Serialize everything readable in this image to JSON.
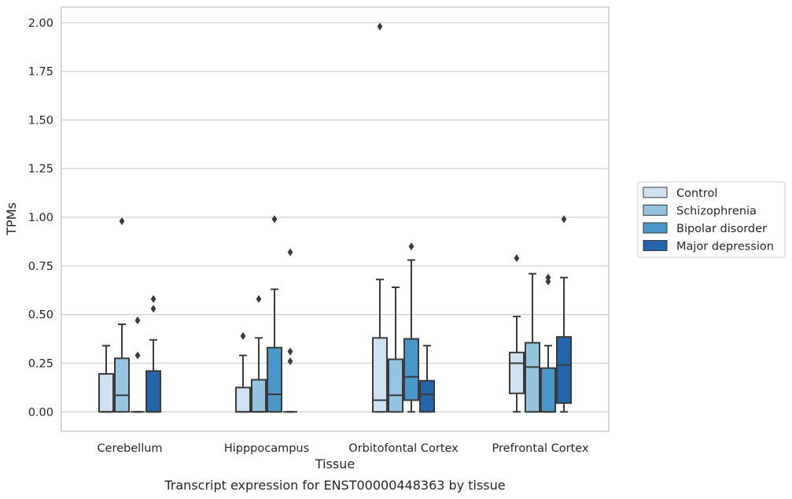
{
  "chart_data": {
    "type": "boxplot",
    "caption": "Transcript expression for ENST00000448363 by tissue",
    "xlabel": "Tissue",
    "ylabel": "TPMs",
    "ylim": [
      -0.1,
      2.08
    ],
    "yticks": [
      0.0,
      0.25,
      0.5,
      0.75,
      1.0,
      1.25,
      1.5,
      1.75,
      2.0
    ],
    "ytick_labels": [
      "0.00",
      "0.25",
      "0.50",
      "0.75",
      "1.00",
      "1.25",
      "1.50",
      "1.75",
      "2.00"
    ],
    "grid": "horizontal",
    "legend_position": "right",
    "categories": [
      "Cerebellum",
      "Hipppocampus",
      "Orbitofontal Cortex",
      "Prefrontal Cortex"
    ],
    "series": [
      {
        "name": "Control",
        "color": "#d0e1f2",
        "boxes": [
          {
            "q1": 0.0,
            "median": 0.0,
            "q3": 0.195,
            "whisker_low": 0.0,
            "whisker_high": 0.34,
            "outliers": []
          },
          {
            "q1": 0.0,
            "median": 0.0,
            "q3": 0.125,
            "whisker_low": 0.0,
            "whisker_high": 0.29,
            "outliers": [
              0.39
            ]
          },
          {
            "q1": 0.0,
            "median": 0.06,
            "q3": 0.38,
            "whisker_low": 0.0,
            "whisker_high": 0.68,
            "outliers": [
              1.98
            ]
          },
          {
            "q1": 0.095,
            "median": 0.25,
            "q3": 0.305,
            "whisker_low": 0.0,
            "whisker_high": 0.49,
            "outliers": [
              0.79
            ]
          }
        ]
      },
      {
        "name": "Schizophrenia",
        "color": "#94c4df",
        "boxes": [
          {
            "q1": 0.0,
            "median": 0.085,
            "q3": 0.275,
            "whisker_low": 0.0,
            "whisker_high": 0.45,
            "outliers": [
              0.98
            ]
          },
          {
            "q1": 0.0,
            "median": 0.0,
            "q3": 0.165,
            "whisker_low": 0.0,
            "whisker_high": 0.38,
            "outliers": [
              0.58
            ]
          },
          {
            "q1": 0.0,
            "median": 0.085,
            "q3": 0.27,
            "whisker_low": 0.0,
            "whisker_high": 0.64,
            "outliers": []
          },
          {
            "q1": 0.0,
            "median": 0.23,
            "q3": 0.355,
            "whisker_low": 0.0,
            "whisker_high": 0.71,
            "outliers": []
          }
        ]
      },
      {
        "name": "Bipolar disorder",
        "color": "#4a98c9",
        "boxes": [
          {
            "q1": 0.0,
            "median": 0.0,
            "q3": 0.0,
            "whisker_low": 0.0,
            "whisker_high": 0.0,
            "outliers": [
              0.29,
              0.47
            ]
          },
          {
            "q1": 0.0,
            "median": 0.09,
            "q3": 0.33,
            "whisker_low": 0.0,
            "whisker_high": 0.63,
            "outliers": [
              0.99
            ]
          },
          {
            "q1": 0.06,
            "median": 0.18,
            "q3": 0.375,
            "whisker_low": 0.0,
            "whisker_high": 0.78,
            "outliers": [
              0.85
            ]
          },
          {
            "q1": 0.0,
            "median": 0.0,
            "q3": 0.225,
            "whisker_low": 0.0,
            "whisker_high": 0.34,
            "outliers": [
              0.67,
              0.69
            ]
          }
        ]
      },
      {
        "name": "Major depression",
        "color": "#2464a8",
        "boxes": [
          {
            "q1": 0.0,
            "median": 0.0,
            "q3": 0.21,
            "whisker_low": 0.0,
            "whisker_high": 0.37,
            "outliers": [
              0.53,
              0.58
            ]
          },
          {
            "q1": 0.0,
            "median": 0.0,
            "q3": 0.0,
            "whisker_low": 0.0,
            "whisker_high": 0.0,
            "outliers": [
              0.26,
              0.31,
              0.82
            ]
          },
          {
            "q1": 0.0,
            "median": 0.09,
            "q3": 0.16,
            "whisker_low": 0.0,
            "whisker_high": 0.34,
            "outliers": []
          },
          {
            "q1": 0.045,
            "median": 0.24,
            "q3": 0.385,
            "whisker_low": 0.0,
            "whisker_high": 0.69,
            "outliers": [
              0.99
            ]
          }
        ]
      }
    ]
  }
}
